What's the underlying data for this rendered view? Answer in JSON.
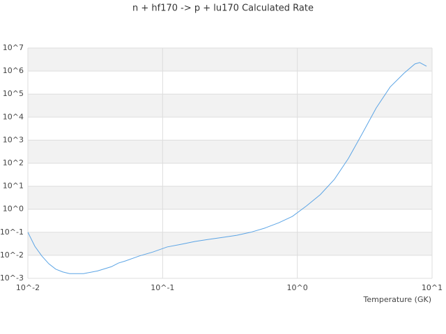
{
  "chart_data": {
    "type": "line",
    "title": "n + hf170 -> p + lu170 Calculated Rate",
    "x_label": "Temperature (GK)",
    "x": [
      0.01,
      0.01127,
      0.0127,
      0.0143,
      0.0161,
      0.0181,
      0.0204,
      0.0259,
      0.0329,
      0.0417,
      0.047,
      0.053,
      0.067,
      0.085,
      0.108,
      0.137,
      0.174,
      0.22,
      0.28,
      0.356,
      0.45,
      0.57,
      0.73,
      0.92,
      1.17,
      1.48,
      1.88,
      2.39,
      3.03,
      3.85,
      4.89,
      6.2,
      7.46,
      8.1,
      9.1
    ],
    "values": [
      0.1,
      0.0245,
      0.0093,
      0.0043,
      0.0025,
      0.0019,
      0.0016,
      0.0016,
      0.0021,
      0.0032,
      0.0046,
      0.0057,
      0.0093,
      0.014,
      0.023,
      0.03,
      0.04,
      0.049,
      0.06,
      0.074,
      0.1,
      0.15,
      0.26,
      0.49,
      1.4,
      4.3,
      19.5,
      158,
      1900,
      25000,
      204000,
      810000,
      2040000,
      2340000,
      1620000
    ],
    "color": "#5ba4e5",
    "xlog": true,
    "ylog": true,
    "grid": true,
    "grid_band_color": "#f2f2f2",
    "xlim": [
      0.01,
      10
    ],
    "ylim": [
      0.001,
      10000000
    ],
    "xticks": [
      {
        "value": 0.01,
        "label": "10^-2"
      },
      {
        "value": 0.1,
        "label": "10^-1"
      },
      {
        "value": 1,
        "label": "10^0"
      },
      {
        "value": 10,
        "label": "10^1"
      }
    ],
    "yticks": [
      {
        "value": 0.001,
        "label": "10^-3"
      },
      {
        "value": 0.01,
        "label": "10^-2"
      },
      {
        "value": 0.1,
        "label": "10^-1"
      },
      {
        "value": 1,
        "label": "10^0"
      },
      {
        "value": 10,
        "label": "10^1"
      },
      {
        "value": 100,
        "label": "10^2"
      },
      {
        "value": 1000,
        "label": "10^3"
      },
      {
        "value": 10000,
        "label": "10^4"
      },
      {
        "value": 100000,
        "label": "10^5"
      },
      {
        "value": 1000000,
        "label": "10^6"
      },
      {
        "value": 10000000,
        "label": "10^7"
      }
    ]
  }
}
